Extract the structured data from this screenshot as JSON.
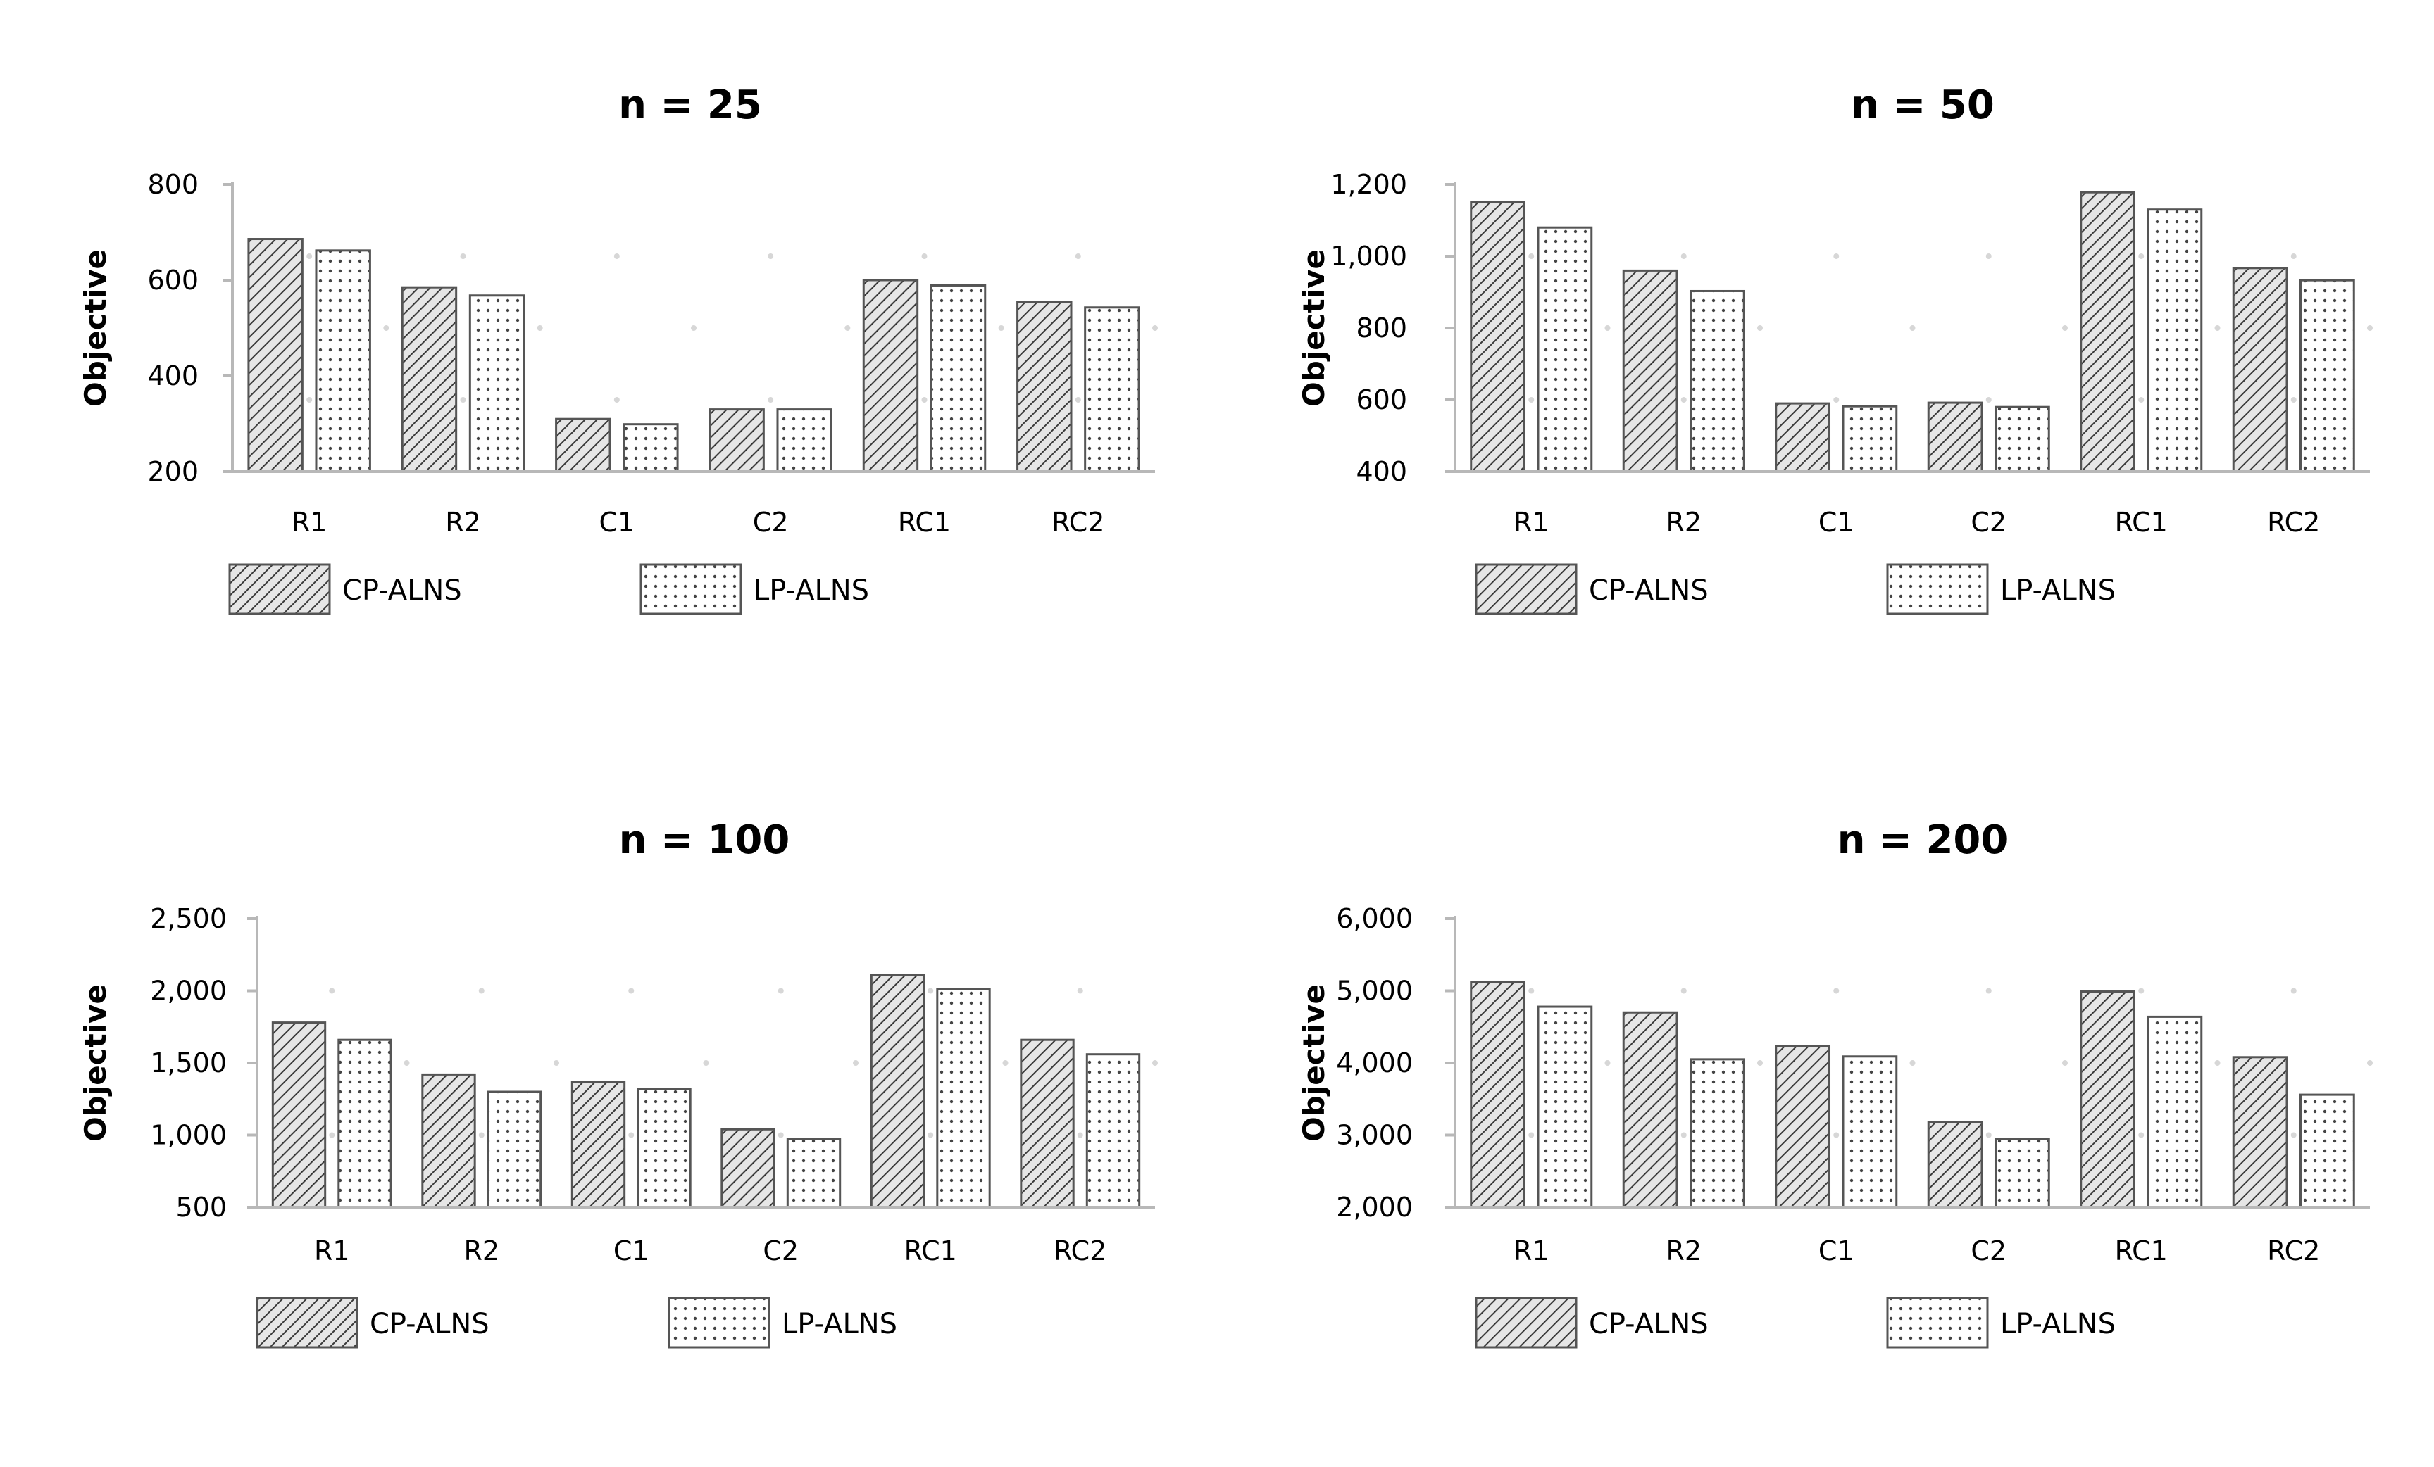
{
  "chart_data": [
    {
      "type": "bar",
      "title": "n = 25",
      "ylabel": "Objective",
      "xlabel": "",
      "categories": [
        "R1",
        "R2",
        "C1",
        "C2",
        "RC1",
        "RC2"
      ],
      "ylim": [
        200,
        800
      ],
      "yticks": [
        200,
        400,
        600,
        800
      ],
      "ytick_labels": [
        "200",
        "400",
        "600",
        "800"
      ],
      "series": [
        {
          "name": "CP-ALNS",
          "pattern": "diagonal-hatch",
          "values": [
            686,
            585,
            310,
            330,
            600,
            555
          ]
        },
        {
          "name": "LP-ALNS",
          "pattern": "dots",
          "values": [
            662,
            568,
            299,
            330,
            589,
            543
          ]
        }
      ],
      "legend_position": "bottom-left",
      "grid": false
    },
    {
      "type": "bar",
      "title": "n = 50",
      "ylabel": "Objective",
      "xlabel": "",
      "categories": [
        "R1",
        "R2",
        "C1",
        "C2",
        "RC1",
        "RC2"
      ],
      "ylim": [
        400,
        1200
      ],
      "yticks": [
        400,
        600,
        800,
        1000,
        1200
      ],
      "ytick_labels": [
        "400",
        "600",
        "800",
        "1,000",
        "1,200"
      ],
      "series": [
        {
          "name": "CP-ALNS",
          "pattern": "diagonal-hatch",
          "values": [
            1150,
            960,
            590,
            592,
            1178,
            967
          ]
        },
        {
          "name": "LP-ALNS",
          "pattern": "dots",
          "values": [
            1080,
            903,
            582,
            580,
            1130,
            933
          ]
        }
      ],
      "legend_position": "bottom-left",
      "grid": false
    },
    {
      "type": "bar",
      "title": "n = 100",
      "ylabel": "Objective",
      "xlabel": "",
      "categories": [
        "R1",
        "R2",
        "C1",
        "C2",
        "RC1",
        "RC2"
      ],
      "ylim": [
        500,
        2500
      ],
      "yticks": [
        500,
        1000,
        1500,
        2000,
        2500
      ],
      "ytick_labels": [
        "500",
        "1,000",
        "1,500",
        "2,000",
        "2,500"
      ],
      "series": [
        {
          "name": "CP-ALNS",
          "pattern": "diagonal-hatch",
          "values": [
            1780,
            1420,
            1370,
            1040,
            2110,
            1660
          ]
        },
        {
          "name": "LP-ALNS",
          "pattern": "dots",
          "values": [
            1660,
            1300,
            1320,
            975,
            2010,
            1560
          ]
        }
      ],
      "legend_position": "bottom-left",
      "grid": false
    },
    {
      "type": "bar",
      "title": "n = 200",
      "ylabel": "Objective",
      "xlabel": "",
      "categories": [
        "R1",
        "R2",
        "C1",
        "C2",
        "RC1",
        "RC2"
      ],
      "ylim": [
        2000,
        6000
      ],
      "yticks": [
        2000,
        3000,
        4000,
        5000,
        6000
      ],
      "ytick_labels": [
        "2,000",
        "3,000",
        "4,000",
        "5,000",
        "6,000"
      ],
      "series": [
        {
          "name": "CP-ALNS",
          "pattern": "diagonal-hatch",
          "values": [
            5120,
            4700,
            4230,
            3180,
            4990,
            4080
          ]
        },
        {
          "name": "LP-ALNS",
          "pattern": "dots",
          "values": [
            4780,
            4050,
            4090,
            2950,
            4640,
            3560
          ]
        }
      ],
      "legend_position": "bottom-left",
      "grid": false
    }
  ]
}
